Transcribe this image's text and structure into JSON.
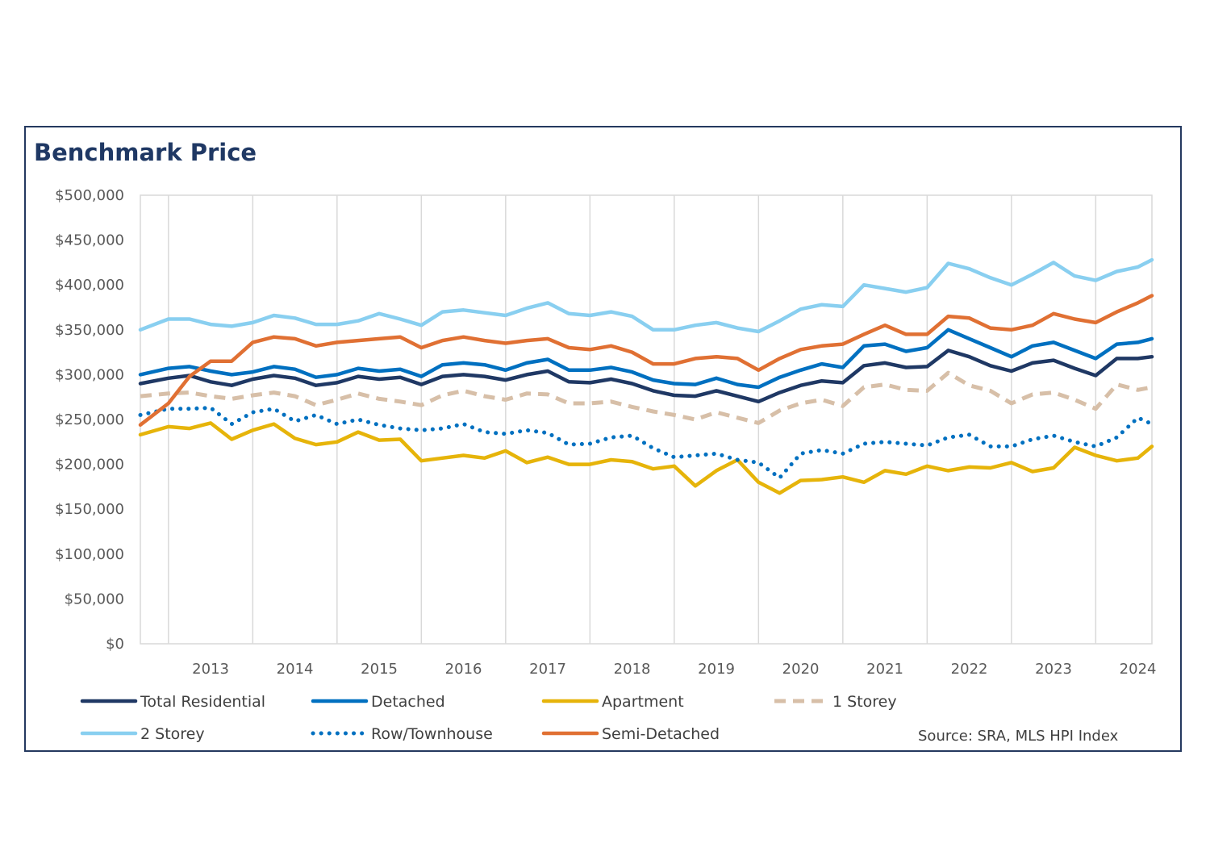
{
  "chart_data": {
    "type": "line",
    "title": "Benchmark Price",
    "source": "Source: SRA, MLS HPI Index",
    "xlabel": "",
    "ylabel": "",
    "ylim": [
      0,
      500000
    ],
    "xlim": [
      "2012-09",
      "2024-09"
    ],
    "y_ticks": [
      0,
      50000,
      100000,
      150000,
      200000,
      250000,
      300000,
      350000,
      400000,
      450000,
      500000
    ],
    "y_tick_labels": [
      "$0",
      "$50,000",
      "$100,000",
      "$150,000",
      "$200,000",
      "$250,000",
      "$300,000",
      "$350,000",
      "$400,000",
      "$450,000",
      "$500,000"
    ],
    "x_tick_labels": [
      "2013",
      "2014",
      "2015",
      "2016",
      "2017",
      "2018",
      "2019",
      "2020",
      "2021",
      "2022",
      "2023",
      "2024"
    ],
    "gridlines": "vertical",
    "legend_position": "bottom",
    "x": [
      "2012-09",
      "2013-01",
      "2013-04",
      "2013-07",
      "2013-10",
      "2014-01",
      "2014-04",
      "2014-07",
      "2014-10",
      "2015-01",
      "2015-04",
      "2015-07",
      "2015-10",
      "2016-01",
      "2016-04",
      "2016-07",
      "2016-10",
      "2017-01",
      "2017-04",
      "2017-07",
      "2017-10",
      "2018-01",
      "2018-04",
      "2018-07",
      "2018-10",
      "2019-01",
      "2019-04",
      "2019-07",
      "2019-10",
      "2020-01",
      "2020-04",
      "2020-07",
      "2020-10",
      "2021-01",
      "2021-04",
      "2021-07",
      "2021-10",
      "2022-01",
      "2022-04",
      "2022-07",
      "2022-10",
      "2023-01",
      "2023-04",
      "2023-07",
      "2023-10",
      "2024-01",
      "2024-04",
      "2024-07",
      "2024-09"
    ],
    "series": [
      {
        "name": "Total Residential",
        "color": "#1F3864",
        "style": "solid",
        "values": [
          290000,
          296000,
          299000,
          292000,
          288000,
          295000,
          299000,
          296000,
          288000,
          291000,
          298000,
          295000,
          297000,
          289000,
          298000,
          300000,
          298000,
          294000,
          300000,
          304000,
          292000,
          291000,
          295000,
          290000,
          282000,
          277000,
          276000,
          282000,
          276000,
          270000,
          280000,
          288000,
          293000,
          291000,
          310000,
          313000,
          308000,
          309000,
          327000,
          320000,
          310000,
          304000,
          313000,
          316000,
          307000,
          299000,
          318000,
          318000,
          320000
        ]
      },
      {
        "name": "Detached",
        "color": "#0070C0",
        "style": "solid",
        "values": [
          300000,
          307000,
          309000,
          304000,
          300000,
          303000,
          309000,
          306000,
          297000,
          300000,
          307000,
          304000,
          306000,
          298000,
          311000,
          313000,
          311000,
          305000,
          313000,
          317000,
          305000,
          305000,
          308000,
          303000,
          294000,
          290000,
          289000,
          296000,
          289000,
          286000,
          297000,
          305000,
          312000,
          308000,
          332000,
          334000,
          326000,
          330000,
          350000,
          340000,
          330000,
          320000,
          332000,
          336000,
          327000,
          318000,
          334000,
          336000,
          340000
        ]
      },
      {
        "name": "Apartment",
        "color": "#E6B40A",
        "style": "solid",
        "values": [
          233000,
          242000,
          240000,
          246000,
          228000,
          238000,
          245000,
          229000,
          222000,
          225000,
          236000,
          227000,
          228000,
          204000,
          207000,
          210000,
          207000,
          215000,
          202000,
          208000,
          200000,
          200000,
          205000,
          203000,
          195000,
          198000,
          176000,
          193000,
          205000,
          180000,
          168000,
          182000,
          183000,
          186000,
          180000,
          193000,
          189000,
          198000,
          193000,
          197000,
          196000,
          202000,
          192000,
          196000,
          219000,
          210000,
          204000,
          207000,
          220000
        ]
      },
      {
        "name": "1 Storey",
        "color": "#D7BFA8",
        "style": "dashed",
        "values": [
          276000,
          279000,
          280000,
          276000,
          273000,
          277000,
          280000,
          276000,
          266000,
          272000,
          279000,
          273000,
          270000,
          266000,
          277000,
          282000,
          276000,
          272000,
          279000,
          278000,
          268000,
          268000,
          270000,
          264000,
          259000,
          255000,
          250000,
          258000,
          252000,
          246000,
          260000,
          268000,
          272000,
          265000,
          286000,
          289000,
          283000,
          282000,
          302000,
          288000,
          282000,
          268000,
          278000,
          280000,
          272000,
          262000,
          289000,
          283000,
          286000
        ]
      },
      {
        "name": "2 Storey",
        "color": "#89CFF0",
        "style": "solid",
        "values": [
          350000,
          362000,
          362000,
          356000,
          354000,
          358000,
          366000,
          363000,
          356000,
          356000,
          360000,
          368000,
          362000,
          355000,
          370000,
          372000,
          369000,
          366000,
          374000,
          380000,
          368000,
          366000,
          370000,
          365000,
          350000,
          350000,
          355000,
          358000,
          352000,
          348000,
          360000,
          373000,
          378000,
          376000,
          400000,
          396000,
          392000,
          397000,
          424000,
          418000,
          408000,
          400000,
          412000,
          425000,
          410000,
          405000,
          415000,
          420000,
          428000
        ]
      },
      {
        "name": "Row/Townhouse",
        "color": "#0070C0",
        "style": "dotted",
        "values": [
          255000,
          262000,
          262000,
          263000,
          245000,
          258000,
          262000,
          248000,
          255000,
          245000,
          250000,
          244000,
          240000,
          238000,
          240000,
          245000,
          236000,
          234000,
          238000,
          235000,
          222000,
          223000,
          230000,
          232000,
          218000,
          208000,
          210000,
          212000,
          205000,
          202000,
          185000,
          212000,
          216000,
          212000,
          223000,
          225000,
          223000,
          221000,
          230000,
          233000,
          220000,
          220000,
          228000,
          232000,
          225000,
          220000,
          230000,
          252000,
          245000
        ]
      },
      {
        "name": "Semi-Detached",
        "color": "#E07033",
        "style": "solid",
        "values": [
          244000,
          268000,
          298000,
          315000,
          315000,
          336000,
          342000,
          340000,
          332000,
          336000,
          338000,
          340000,
          342000,
          330000,
          338000,
          342000,
          338000,
          335000,
          338000,
          340000,
          330000,
          328000,
          332000,
          325000,
          312000,
          312000,
          318000,
          320000,
          318000,
          305000,
          318000,
          328000,
          332000,
          334000,
          345000,
          355000,
          345000,
          345000,
          365000,
          363000,
          352000,
          350000,
          355000,
          368000,
          362000,
          358000,
          370000,
          380000,
          388000
        ]
      }
    ]
  }
}
